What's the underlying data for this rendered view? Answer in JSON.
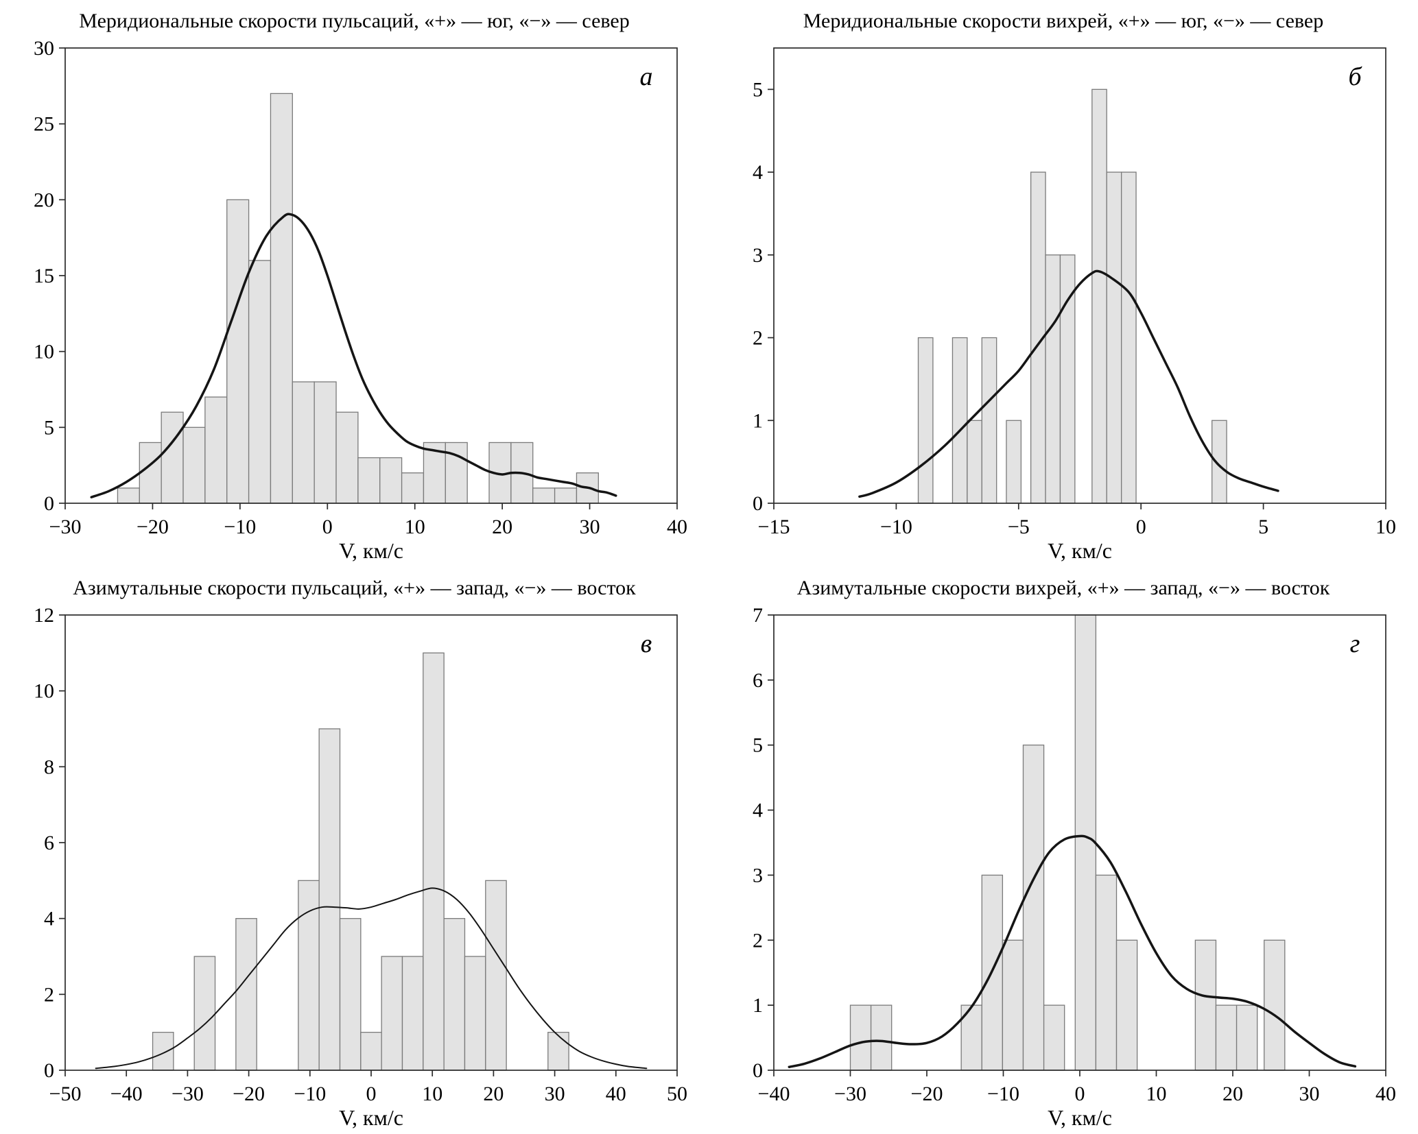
{
  "page": {
    "background": "#ffffff"
  },
  "style": {
    "bar_fill": "#e3e3e3",
    "bar_stroke": "#7a7a7a",
    "curve_color": "#151515",
    "axis_color": "#2b2b2b",
    "text_color": "#000000"
  },
  "chart_data": [
    {
      "id": "a",
      "panel_letter": "а",
      "title": "Меридиональные скорости пульсаций, «+» — юг, «−» — север",
      "type": "bar",
      "xlabel": "V, км/с",
      "xlim": [
        -30,
        40
      ],
      "ylim": [
        0,
        30
      ],
      "xticks": [
        -30,
        -20,
        -10,
        0,
        10,
        20,
        30,
        40
      ],
      "yticks": [
        0,
        5,
        10,
        15,
        20,
        25,
        30
      ],
      "grid": false,
      "legend_position": "none",
      "bar_width": 2.5,
      "curve_width": 3.5,
      "bars": [
        {
          "x": -24,
          "h": 1
        },
        {
          "x": -21.5,
          "h": 4
        },
        {
          "x": -19,
          "h": 6
        },
        {
          "x": -16.5,
          "h": 5
        },
        {
          "x": -14,
          "h": 7
        },
        {
          "x": -11.5,
          "h": 20
        },
        {
          "x": -9,
          "h": 16
        },
        {
          "x": -6.5,
          "h": 27
        },
        {
          "x": -4,
          "h": 8
        },
        {
          "x": -1.5,
          "h": 8
        },
        {
          "x": 1,
          "h": 6
        },
        {
          "x": 3.5,
          "h": 3
        },
        {
          "x": 6,
          "h": 3
        },
        {
          "x": 8.5,
          "h": 2
        },
        {
          "x": 11,
          "h": 4
        },
        {
          "x": 13.5,
          "h": 4
        },
        {
          "x": 18.5,
          "h": 4
        },
        {
          "x": 21,
          "h": 4
        },
        {
          "x": 23.5,
          "h": 1
        },
        {
          "x": 26,
          "h": 1
        },
        {
          "x": 28.5,
          "h": 2
        }
      ],
      "curve": [
        [
          -27,
          0.4
        ],
        [
          -25,
          0.8
        ],
        [
          -23,
          1.4
        ],
        [
          -21,
          2.2
        ],
        [
          -19,
          3.2
        ],
        [
          -17,
          4.6
        ],
        [
          -15,
          6.4
        ],
        [
          -13,
          8.8
        ],
        [
          -11,
          12
        ],
        [
          -9,
          15.2
        ],
        [
          -7,
          17.6
        ],
        [
          -5,
          18.9
        ],
        [
          -4,
          19
        ],
        [
          -3,
          18.6
        ],
        [
          -2,
          17.8
        ],
        [
          -1,
          16.6
        ],
        [
          0,
          15
        ],
        [
          1,
          13.2
        ],
        [
          2,
          11.4
        ],
        [
          3,
          9.7
        ],
        [
          4,
          8.2
        ],
        [
          5,
          7
        ],
        [
          6,
          6
        ],
        [
          7,
          5.2
        ],
        [
          8,
          4.6
        ],
        [
          9,
          4.1
        ],
        [
          10,
          3.8
        ],
        [
          11,
          3.6
        ],
        [
          12,
          3.5
        ],
        [
          13,
          3.4
        ],
        [
          14,
          3.3
        ],
        [
          15,
          3.1
        ],
        [
          16,
          2.8
        ],
        [
          17,
          2.5
        ],
        [
          18,
          2.2
        ],
        [
          19,
          2
        ],
        [
          20,
          1.9
        ],
        [
          21,
          2
        ],
        [
          22,
          2
        ],
        [
          23,
          1.9
        ],
        [
          24,
          1.7
        ],
        [
          25,
          1.6
        ],
        [
          26,
          1.5
        ],
        [
          27,
          1.4
        ],
        [
          28,
          1.3
        ],
        [
          29,
          1.1
        ],
        [
          30,
          1
        ],
        [
          31,
          0.8
        ],
        [
          32,
          0.7
        ],
        [
          33,
          0.5
        ]
      ]
    },
    {
      "id": "b",
      "panel_letter": "б",
      "title": "Меридиональные скорости вихрей, «+» — юг, «−» — север",
      "type": "bar",
      "xlabel": "V, км/с",
      "xlim": [
        -15,
        10
      ],
      "ylim": [
        0,
        5.5
      ],
      "xticks": [
        -15,
        -10,
        -5,
        0,
        5,
        10
      ],
      "yticks": [
        0,
        1,
        2,
        3,
        4,
        5
      ],
      "grid": false,
      "legend_position": "none",
      "bar_width": 0.6,
      "curve_width": 3.5,
      "bars": [
        {
          "x": -9.1,
          "h": 2
        },
        {
          "x": -7.7,
          "h": 2
        },
        {
          "x": -7.1,
          "h": 1
        },
        {
          "x": -6.5,
          "h": 2
        },
        {
          "x": -5.5,
          "h": 1
        },
        {
          "x": -4.5,
          "h": 4
        },
        {
          "x": -3.9,
          "h": 3
        },
        {
          "x": -3.3,
          "h": 3
        },
        {
          "x": -2.0,
          "h": 5
        },
        {
          "x": -1.4,
          "h": 4
        },
        {
          "x": -0.8,
          "h": 4
        },
        {
          "x": 2.9,
          "h": 1
        }
      ],
      "curve": [
        [
          -11.5,
          0.08
        ],
        [
          -11,
          0.12
        ],
        [
          -10,
          0.25
        ],
        [
          -9,
          0.45
        ],
        [
          -8,
          0.7
        ],
        [
          -7,
          1.0
        ],
        [
          -6.5,
          1.15
        ],
        [
          -6,
          1.3
        ],
        [
          -5.5,
          1.45
        ],
        [
          -5,
          1.6
        ],
        [
          -4.5,
          1.8
        ],
        [
          -4,
          2.0
        ],
        [
          -3.5,
          2.2
        ],
        [
          -3,
          2.45
        ],
        [
          -2.5,
          2.65
        ],
        [
          -2,
          2.78
        ],
        [
          -1.7,
          2.8
        ],
        [
          -1.2,
          2.72
        ],
        [
          -0.5,
          2.55
        ],
        [
          0,
          2.3
        ],
        [
          0.5,
          2.0
        ],
        [
          1,
          1.7
        ],
        [
          1.5,
          1.4
        ],
        [
          2,
          1.05
        ],
        [
          2.5,
          0.75
        ],
        [
          3,
          0.52
        ],
        [
          3.5,
          0.38
        ],
        [
          4,
          0.3
        ],
        [
          4.5,
          0.25
        ],
        [
          5,
          0.2
        ],
        [
          5.6,
          0.15
        ]
      ]
    },
    {
      "id": "v",
      "panel_letter": "в",
      "title": "Азимутальные скорости пульсаций, «+» — запад, «−» — восток",
      "type": "bar",
      "xlabel": "V, км/с",
      "xlim": [
        -50,
        50
      ],
      "ylim": [
        0,
        12
      ],
      "xticks": [
        -50,
        -40,
        -30,
        -20,
        -10,
        0,
        10,
        20,
        30,
        40,
        50
      ],
      "yticks": [
        0,
        2,
        4,
        6,
        8,
        10,
        12
      ],
      "grid": false,
      "legend_position": "none",
      "bar_width": 3.4,
      "curve_width": 2,
      "bars": [
        {
          "x": -35.7,
          "h": 1
        },
        {
          "x": -28.9,
          "h": 3
        },
        {
          "x": -22.1,
          "h": 4
        },
        {
          "x": -11.9,
          "h": 5
        },
        {
          "x": -8.5,
          "h": 9
        },
        {
          "x": -5.1,
          "h": 4
        },
        {
          "x": -1.7,
          "h": 1
        },
        {
          "x": 1.7,
          "h": 3
        },
        {
          "x": 5.1,
          "h": 3
        },
        {
          "x": 8.5,
          "h": 11
        },
        {
          "x": 11.9,
          "h": 4
        },
        {
          "x": 15.3,
          "h": 3
        },
        {
          "x": 18.7,
          "h": 5
        },
        {
          "x": 28.9,
          "h": 1
        }
      ],
      "curve": [
        [
          -45,
          0.05
        ],
        [
          -42,
          0.1
        ],
        [
          -40,
          0.15
        ],
        [
          -38,
          0.22
        ],
        [
          -36,
          0.32
        ],
        [
          -34,
          0.45
        ],
        [
          -32,
          0.62
        ],
        [
          -30,
          0.85
        ],
        [
          -28,
          1.1
        ],
        [
          -26,
          1.4
        ],
        [
          -24,
          1.75
        ],
        [
          -22,
          2.1
        ],
        [
          -20,
          2.5
        ],
        [
          -18,
          2.9
        ],
        [
          -16,
          3.3
        ],
        [
          -14,
          3.7
        ],
        [
          -12,
          4.0
        ],
        [
          -10,
          4.2
        ],
        [
          -8,
          4.3
        ],
        [
          -6,
          4.3
        ],
        [
          -4,
          4.28
        ],
        [
          -2,
          4.25
        ],
        [
          0,
          4.3
        ],
        [
          2,
          4.4
        ],
        [
          4,
          4.5
        ],
        [
          6,
          4.62
        ],
        [
          8,
          4.72
        ],
        [
          10,
          4.8
        ],
        [
          12,
          4.72
        ],
        [
          14,
          4.5
        ],
        [
          16,
          4.15
        ],
        [
          18,
          3.7
        ],
        [
          20,
          3.2
        ],
        [
          22,
          2.7
        ],
        [
          24,
          2.2
        ],
        [
          26,
          1.75
        ],
        [
          28,
          1.35
        ],
        [
          30,
          1.0
        ],
        [
          32,
          0.72
        ],
        [
          34,
          0.5
        ],
        [
          36,
          0.35
        ],
        [
          38,
          0.24
        ],
        [
          40,
          0.16
        ],
        [
          42,
          0.1
        ],
        [
          45,
          0.05
        ]
      ]
    },
    {
      "id": "g",
      "panel_letter": "г",
      "title": "Азимутальные скорости вихрей, «+» — запад, «−» — восток",
      "type": "bar",
      "xlabel": "V, км/с",
      "xlim": [
        -40,
        40
      ],
      "ylim": [
        0,
        7
      ],
      "xticks": [
        -40,
        -30,
        -20,
        -10,
        0,
        10,
        20,
        30,
        40
      ],
      "yticks": [
        0,
        1,
        2,
        3,
        4,
        5,
        6,
        7
      ],
      "grid": false,
      "legend_position": "none",
      "bar_width": 2.7,
      "curve_width": 3.5,
      "bars": [
        {
          "x": -30,
          "h": 1
        },
        {
          "x": -27.3,
          "h": 1
        },
        {
          "x": -15.5,
          "h": 1
        },
        {
          "x": -12.8,
          "h": 3
        },
        {
          "x": -10.1,
          "h": 2
        },
        {
          "x": -7.4,
          "h": 5
        },
        {
          "x": -4.7,
          "h": 1
        },
        {
          "x": -0.6,
          "h": 7
        },
        {
          "x": 2.1,
          "h": 3
        },
        {
          "x": 4.8,
          "h": 2
        },
        {
          "x": 15.1,
          "h": 2
        },
        {
          "x": 17.8,
          "h": 1
        },
        {
          "x": 20.5,
          "h": 1
        },
        {
          "x": 24.1,
          "h": 2
        }
      ],
      "curve": [
        [
          -38,
          0.05
        ],
        [
          -36,
          0.1
        ],
        [
          -34,
          0.18
        ],
        [
          -32,
          0.28
        ],
        [
          -30,
          0.38
        ],
        [
          -28,
          0.44
        ],
        [
          -26,
          0.45
        ],
        [
          -24,
          0.42
        ],
        [
          -22,
          0.4
        ],
        [
          -20,
          0.42
        ],
        [
          -18,
          0.52
        ],
        [
          -16,
          0.72
        ],
        [
          -14,
          1.0
        ],
        [
          -12,
          1.4
        ],
        [
          -10,
          1.9
        ],
        [
          -8,
          2.45
        ],
        [
          -6,
          2.95
        ],
        [
          -4,
          3.35
        ],
        [
          -2,
          3.55
        ],
        [
          0,
          3.6
        ],
        [
          1,
          3.58
        ],
        [
          2,
          3.5
        ],
        [
          4,
          3.2
        ],
        [
          6,
          2.75
        ],
        [
          8,
          2.25
        ],
        [
          10,
          1.8
        ],
        [
          12,
          1.45
        ],
        [
          14,
          1.25
        ],
        [
          16,
          1.15
        ],
        [
          18,
          1.12
        ],
        [
          20,
          1.1
        ],
        [
          22,
          1.05
        ],
        [
          24,
          0.95
        ],
        [
          26,
          0.8
        ],
        [
          28,
          0.6
        ],
        [
          30,
          0.42
        ],
        [
          32,
          0.25
        ],
        [
          34,
          0.12
        ],
        [
          36,
          0.06
        ]
      ]
    }
  ]
}
